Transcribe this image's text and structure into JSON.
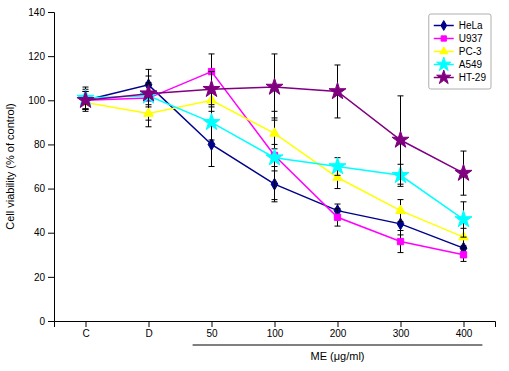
{
  "chart_data": {
    "type": "line",
    "categories": [
      "C",
      "D",
      "50",
      "100",
      "200",
      "300",
      "400"
    ],
    "series": [
      {
        "name": "HeLa",
        "color": "#00008B",
        "marker": "diamond",
        "values": [
          100,
          107,
          80,
          62,
          50,
          44,
          33
        ],
        "errors": [
          5,
          7,
          10,
          8,
          3,
          5,
          4
        ]
      },
      {
        "name": "U937",
        "color": "#FF00FF",
        "marker": "square",
        "values": [
          100,
          101,
          113,
          75,
          47,
          36,
          30
        ],
        "errors": [
          4,
          10,
          8,
          20,
          4,
          5,
          3
        ]
      },
      {
        "name": "PC-3",
        "color": "#FFFF00",
        "marker": "triangle",
        "values": [
          99,
          94,
          100,
          85,
          65,
          50,
          38
        ],
        "errors": [
          3,
          6,
          5,
          7,
          5,
          5,
          4
        ]
      },
      {
        "name": "A549",
        "color": "#00FFFF",
        "marker": "star",
        "values": [
          101,
          102,
          90,
          74,
          70,
          66,
          46
        ],
        "errors": [
          5,
          5,
          8,
          6,
          4,
          5,
          8
        ]
      },
      {
        "name": "HT-29",
        "color": "#800080",
        "marker": "star",
        "values": [
          100,
          103,
          105,
          106,
          104,
          82,
          67
        ],
        "errors": [
          4,
          5,
          8,
          15,
          12,
          20,
          10
        ]
      }
    ],
    "ylabel": "Cell viability (% of control)",
    "xlabel": "ME (μg/ml)",
    "ylim": [
      0,
      140
    ],
    "yticks": [
      0,
      20,
      40,
      60,
      80,
      100,
      120,
      140
    ],
    "legend": "upper right",
    "grid": false
  }
}
